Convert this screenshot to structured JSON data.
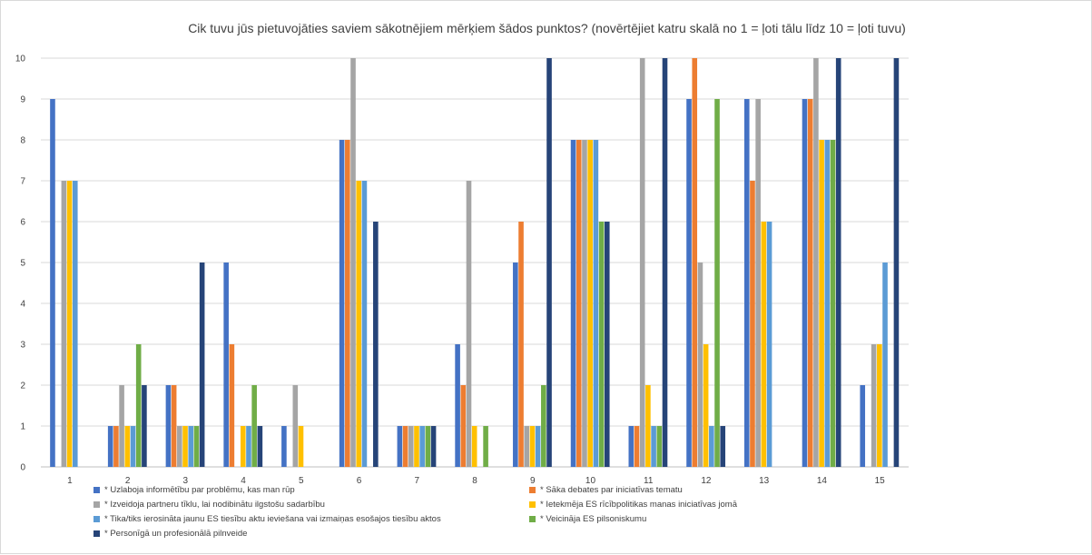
{
  "chart_data": {
    "type": "bar",
    "title": "Cik tuvu jūs pietuvojāties saviem sākotnējiem mērķiem šādos punktos? (novērtējiet katru skalā no 1 = ļoti tālu līdz 10 = ļoti tuvu)",
    "xlabel": "",
    "ylabel": "",
    "ylim": [
      0,
      10
    ],
    "yticks": [
      "0",
      "1",
      "2",
      "3",
      "4",
      "5",
      "6",
      "7",
      "8",
      "9",
      "10"
    ],
    "grid": true,
    "legend_position": "bottom",
    "categories": [
      "1",
      "2",
      "3",
      "4",
      "5",
      "6",
      "7",
      "8",
      "9",
      "10",
      "11",
      "12",
      "13",
      "14",
      "15"
    ],
    "series": [
      {
        "name": "* Uzlaboja informētību par problēmu, kas man rūp",
        "color": "#4472C4",
        "values": [
          9,
          1,
          2,
          5,
          1,
          8,
          1,
          3,
          5,
          8,
          1,
          9,
          9,
          9,
          2
        ]
      },
      {
        "name": "* Sāka debates par iniciatīvas tematu",
        "color": "#ED7D31",
        "values": [
          0,
          1,
          2,
          3,
          0,
          8,
          1,
          2,
          6,
          8,
          1,
          10,
          7,
          9,
          0
        ]
      },
      {
        "name": "* Izveidoja partneru tīklu, lai nodibinātu ilgstošu sadarbību",
        "color": "#A5A5A5",
        "values": [
          7,
          2,
          1,
          0,
          2,
          10,
          1,
          7,
          1,
          8,
          10,
          5,
          9,
          10,
          3
        ]
      },
      {
        "name": "* Ietekmēja ES rīcībpolitikas manas iniciatīvas jomā",
        "color": "#FFC000",
        "values": [
          7,
          1,
          1,
          1,
          1,
          7,
          1,
          1,
          1,
          8,
          2,
          3,
          6,
          8,
          3
        ]
      },
      {
        "name": "* Tika/tiks ierosināta jaunu ES tiesību aktu ieviešana vai izmaiņas esošajos tiesību aktos",
        "color": "#5B9BD5",
        "values": [
          7,
          1,
          1,
          1,
          0,
          7,
          1,
          0,
          1,
          8,
          1,
          1,
          6,
          8,
          5
        ]
      },
      {
        "name": "* Veicināja ES pilsoniskumu",
        "color": "#70AD47",
        "values": [
          0,
          3,
          1,
          2,
          0,
          0,
          1,
          1,
          2,
          6,
          1,
          9,
          0,
          8,
          0
        ]
      },
      {
        "name": "* Personīgā un profesionālā pilnveide",
        "color": "#264478",
        "values": [
          0,
          2,
          5,
          1,
          0,
          6,
          1,
          0,
          10,
          6,
          10,
          1,
          0,
          10,
          10
        ]
      }
    ]
  }
}
